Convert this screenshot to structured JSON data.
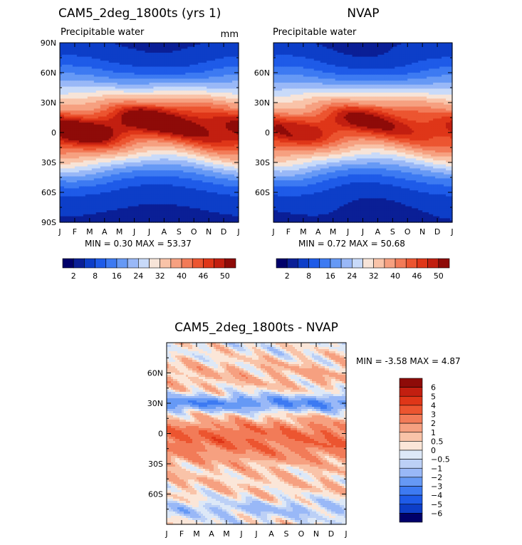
{
  "chart_data": [
    {
      "type": "heatmap",
      "title": "CAM5_2deg_1800ts (yrs 1)",
      "subtitle": "Precipitable water",
      "units": "mm",
      "x_ticks": [
        "J",
        "F",
        "M",
        "A",
        "M",
        "J",
        "J",
        "A",
        "S",
        "O",
        "N",
        "D",
        "J"
      ],
      "y_ticks": [
        "90N",
        "60N",
        "30N",
        "0",
        "30S",
        "60S",
        "90S"
      ],
      "y_range": [
        -90,
        90
      ],
      "stats_text": "MIN =    0.30  MAX =   53.37",
      "min": 0.3,
      "max": 53.37,
      "colorbar_labels": [
        "2",
        "8",
        "16",
        "24",
        "32",
        "40",
        "46",
        "50"
      ],
      "colorbar_colors": [
        "#00006a",
        "#0a1f96",
        "#0d3ec8",
        "#1e5be8",
        "#3d7af2",
        "#6699f5",
        "#99b8f7",
        "#c8daf9",
        "#f7e4d8",
        "#f9c3a8",
        "#f6a080",
        "#f27b58",
        "#ec5530",
        "#df3618",
        "#c21f10",
        "#8e0b08"
      ]
    },
    {
      "type": "heatmap",
      "title": "NVAP",
      "subtitle": "Precipitable water",
      "x_ticks": [
        "J",
        "F",
        "M",
        "A",
        "M",
        "J",
        "J",
        "A",
        "S",
        "O",
        "N",
        "D",
        "J"
      ],
      "y_ticks": [
        "60N",
        "30N",
        "0",
        "30S",
        "60S"
      ],
      "y_range": [
        -90,
        90
      ],
      "stats_text": "MIN =    0.72  MAX =   50.68",
      "min": 0.72,
      "max": 50.68,
      "colorbar_labels": [
        "2",
        "8",
        "16",
        "24",
        "32",
        "40",
        "46",
        "50"
      ]
    },
    {
      "type": "heatmap",
      "title": "CAM5_2deg_1800ts - NVAP",
      "x_ticks": [
        "J",
        "F",
        "M",
        "A",
        "M",
        "J",
        "J",
        "A",
        "S",
        "O",
        "N",
        "D",
        "J"
      ],
      "y_ticks": [
        "60N",
        "30N",
        "0",
        "30S",
        "60S"
      ],
      "y_range": [
        -90,
        90
      ],
      "stats_text": "MIN =   -3.58  MAX =    4.87",
      "min": -3.58,
      "max": 4.87,
      "colorbar_labels": [
        "6",
        "5",
        "4",
        "3",
        "2",
        "1",
        "0.5",
        "0",
        "-0.5",
        "-1",
        "-2",
        "-3",
        "-4",
        "-5",
        "-6"
      ],
      "colorbar_colors": [
        "#8e0b08",
        "#c21f10",
        "#df3618",
        "#ec5530",
        "#f27b58",
        "#f6a080",
        "#f9c3a8",
        "#fbe6d8",
        "#dde8f7",
        "#bcd0f6",
        "#99b8f7",
        "#6699f5",
        "#3d7af2",
        "#1e5be8",
        "#0d3ec8",
        "#00006a"
      ]
    }
  ]
}
